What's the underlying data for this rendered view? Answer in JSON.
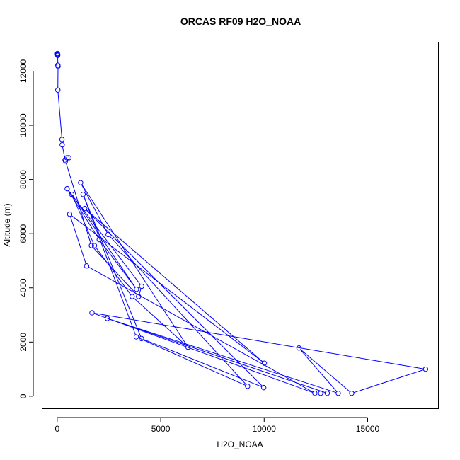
{
  "chart_data": {
    "type": "line",
    "title": "ORCAS RF09 H2O_NOAA",
    "xlabel": "H2O_NOAA",
    "ylabel": "Altitude (m)",
    "xlim": [
      -730,
      18420
    ],
    "ylim": [
      -460,
      13070
    ],
    "xticks": [
      0,
      5000,
      10000,
      15000
    ],
    "yticks": [
      0,
      2000,
      4000,
      6000,
      8000,
      10000,
      12000
    ],
    "grid": false,
    "legend": "none",
    "series_color": "#0000ff",
    "series": [
      {
        "points": [
          [
            10,
            12650
          ],
          [
            15,
            12620
          ],
          [
            20,
            12600
          ],
          [
            25,
            12580
          ],
          [
            30,
            12220
          ],
          [
            40,
            12180
          ],
          [
            30,
            11300
          ],
          [
            230,
            9480
          ],
          [
            240,
            9280
          ],
          [
            380,
            8720
          ],
          [
            470,
            8800
          ],
          [
            560,
            8800
          ],
          [
            400,
            8680
          ],
          [
            1650,
            5560
          ],
          [
            3930,
            3680
          ],
          [
            4080,
            4060
          ],
          [
            480,
            7660
          ],
          [
            2030,
            5780
          ],
          [
            3830,
            3950
          ],
          [
            700,
            7450
          ],
          [
            1800,
            5560
          ],
          [
            3620,
            3680
          ],
          [
            6320,
            1810
          ],
          [
            1130,
            7880
          ],
          [
            2460,
            5970
          ],
          [
            9200,
            370
          ],
          [
            3820,
            2190
          ],
          [
            1250,
            7450
          ],
          [
            4070,
            2130
          ],
          [
            9980,
            320
          ],
          [
            1330,
            6930
          ],
          [
            10010,
            1220
          ],
          [
            600,
            6720
          ],
          [
            1420,
            4810
          ],
          [
            12450,
            110
          ],
          [
            1680,
            3080
          ],
          [
            17800,
            1000
          ],
          [
            14230,
            110
          ],
          [
            11680,
            1780
          ],
          [
            13580,
            110
          ],
          [
            2420,
            2870
          ],
          [
            13050,
            110
          ],
          [
            12730,
            110
          ]
        ]
      }
    ]
  }
}
